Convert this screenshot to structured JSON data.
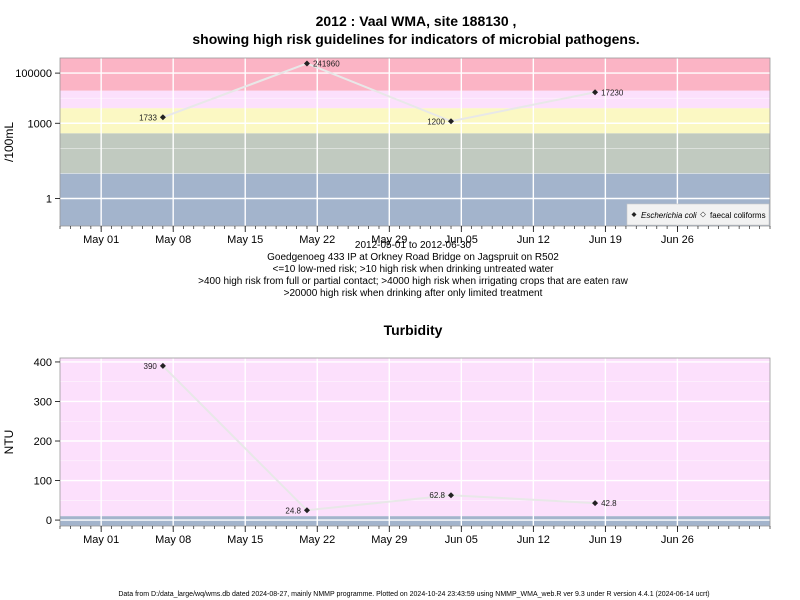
{
  "chart_data": [
    {
      "type": "line",
      "title_line1": "2012 : Vaal WMA, site 188130 ,",
      "title_line2": "showing high risk guidelines for indicators of microbial pathogens.",
      "ylabel": "/100mL",
      "y_scale": "log10",
      "ylim": [
        0.08,
        400000
      ],
      "xlim": [
        "2012-04-27",
        "2012-07-05"
      ],
      "x_tick_labels": [
        "May 01",
        "May 08",
        "May 15",
        "May 22",
        "May 29",
        "Jun 05",
        "Jun 12",
        "Jun 19",
        "Jun 26"
      ],
      "x_tick_dates": [
        "2012-05-01",
        "2012-05-08",
        "2012-05-15",
        "2012-05-22",
        "2012-05-29",
        "2012-06-05",
        "2012-06-12",
        "2012-06-19",
        "2012-06-26"
      ],
      "y_ticks": [
        1,
        1000,
        100000
      ],
      "y_tick_labels": [
        "1",
        "1000",
        "100000"
      ],
      "grid": true,
      "bands": [
        {
          "from": 0.08,
          "to": 10,
          "color": "#a3b4cc"
        },
        {
          "from": 10,
          "to": 400,
          "color": "#c1cac0"
        },
        {
          "from": 400,
          "to": 4000,
          "color": "#fbf8c3"
        },
        {
          "from": 4000,
          "to": 20000,
          "color": "#fce0fc"
        },
        {
          "from": 20000,
          "to": 400000,
          "color": "#fbb4c5"
        }
      ],
      "series": [
        {
          "name": "Escherichia coli",
          "color": "#e8e8e8",
          "x": [
            "2012-05-07",
            "2012-05-21",
            "2012-06-04",
            "2012-06-18"
          ],
          "values": [
            1733,
            241960,
            1200,
            17230
          ],
          "labels": [
            "1733",
            "241960",
            "1200",
            "17230"
          ]
        }
      ],
      "legend": {
        "placement": "bottom-right",
        "entries": [
          "Escherichia coli",
          "faecal coliforms"
        ]
      },
      "caption_lines": [
        "2012-05-01 to 2012-06-30",
        "Goedgenoeg 433 IP at Orkney Road Bridge on Jagspruit on R502",
        "<=10 low-med risk; >10 high risk when drinking untreated water",
        ">400 high risk from full or partial contact; >4000 high risk when irrigating crops that are eaten raw",
        ">20000 high risk when drinking after only limited treatment"
      ]
    },
    {
      "type": "line",
      "title": "Turbidity",
      "ylabel": "NTU",
      "ylim": [
        -15,
        410
      ],
      "xlim": [
        "2012-04-27",
        "2012-07-05"
      ],
      "x_tick_labels": [
        "May 01",
        "May 08",
        "May 15",
        "May 22",
        "May 29",
        "Jun 05",
        "Jun 12",
        "Jun 19",
        "Jun 26"
      ],
      "x_tick_dates": [
        "2012-05-01",
        "2012-05-08",
        "2012-05-15",
        "2012-05-22",
        "2012-05-29",
        "2012-06-05",
        "2012-06-12",
        "2012-06-19",
        "2012-06-26"
      ],
      "y_ticks": [
        0,
        100,
        200,
        300,
        400
      ],
      "y_tick_labels": [
        "0",
        "100",
        "200",
        "300",
        "400"
      ],
      "grid": true,
      "bands": [
        {
          "from": -15,
          "to": 10,
          "color": "#a3b4cc"
        },
        {
          "from": 10,
          "to": 410,
          "color": "#fce0fc"
        }
      ],
      "series": [
        {
          "name": "",
          "color": "#e8e8e8",
          "x": [
            "2012-05-07",
            "2012-05-21",
            "2012-06-04",
            "2012-06-18"
          ],
          "values": [
            390,
            24.8,
            62.8,
            42.8
          ],
          "labels": [
            "390",
            "24.8",
            "62.8",
            "42.8"
          ]
        }
      ]
    }
  ],
  "footer": "Data from D:/data_large/wq/wms.db dated 2024-08-27, mainly NMMP programme. Plotted on 2024-10-24 23:43:59 using NMMP_WMA_web.R ver 9.3 under R version 4.4.1 (2024-06-14 ucrt)"
}
